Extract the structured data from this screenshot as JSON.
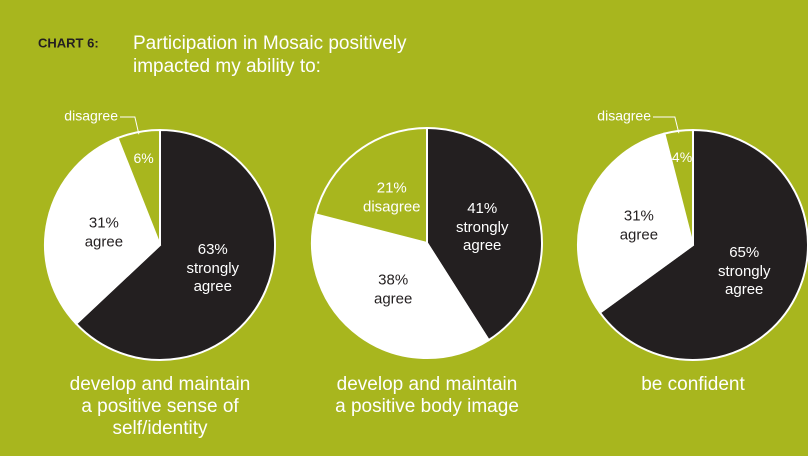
{
  "label": "CHART 6:",
  "title": [
    "Participation in Mosaic positively",
    "impacted my ability to:"
  ],
  "chart_data": [
    {
      "type": "pie",
      "title": [
        "develop and maintain",
        "a positive sense of",
        "self/identity"
      ],
      "categories": [
        "strongly agree",
        "agree",
        "disagree"
      ],
      "values": [
        63,
        31,
        6
      ],
      "value_labels": [
        "63%",
        "31%",
        "6%"
      ],
      "colors": [
        "#231f20",
        "#ffffff",
        "#a8b61e"
      ]
    },
    {
      "type": "pie",
      "title": [
        "develop and maintain",
        "a positive body image"
      ],
      "categories": [
        "strongly agree",
        "agree",
        "disagree"
      ],
      "values": [
        41,
        38,
        21
      ],
      "value_labels": [
        "41%",
        "38%",
        "21%"
      ],
      "colors": [
        "#231f20",
        "#ffffff",
        "#a8b61e"
      ]
    },
    {
      "type": "pie",
      "title": [
        "be confident"
      ],
      "categories": [
        "strongly agree",
        "agree",
        "disagree"
      ],
      "values": [
        65,
        31,
        4
      ],
      "value_labels": [
        "65%",
        "31%",
        "4%"
      ],
      "colors": [
        "#231f20",
        "#ffffff",
        "#a8b61e"
      ]
    }
  ]
}
